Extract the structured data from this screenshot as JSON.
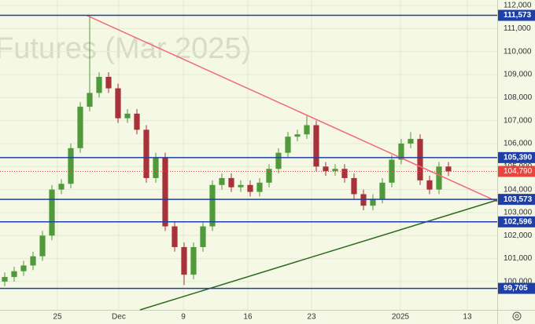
{
  "chart_data": {
    "type": "candlestick",
    "watermark": "Futures (Mar 2025)",
    "x": [
      0,
      1,
      2,
      3,
      4,
      5,
      6,
      7,
      8,
      9,
      10,
      11,
      12,
      13,
      14,
      15,
      16,
      17,
      18,
      19,
      20,
      21,
      22,
      23,
      24,
      25,
      26,
      27,
      28,
      29,
      30,
      31,
      32,
      33,
      34,
      35,
      36,
      37,
      38,
      39,
      40,
      41,
      42,
      43,
      44,
      45,
      46,
      47
    ],
    "open": [
      100000,
      100200,
      100450,
      100700,
      101100,
      102000,
      104000,
      104250,
      105800,
      107600,
      108200,
      108900,
      108400,
      107100,
      107300,
      106600,
      104500,
      105400,
      102400,
      101500,
      100300,
      101500,
      102400,
      104200,
      104500,
      104100,
      104200,
      103900,
      104300,
      104900,
      105600,
      106300,
      106400,
      106800,
      105000,
      104800,
      104900,
      104500,
      103800,
      103300,
      103600,
      104300,
      105300,
      106000,
      106200,
      104400,
      104000,
      105000
    ],
    "high": [
      100400,
      100650,
      100900,
      101300,
      102200,
      104200,
      104450,
      106000,
      107800,
      111573,
      109100,
      109100,
      108600,
      107500,
      107500,
      106800,
      105600,
      105600,
      102600,
      101700,
      101700,
      102600,
      104400,
      104700,
      104700,
      104400,
      104400,
      104500,
      105100,
      105800,
      106500,
      106600,
      107200,
      107000,
      105200,
      105100,
      105100,
      104700,
      104000,
      103800,
      104500,
      105500,
      106200,
      106500,
      106400,
      104600,
      105200,
      105200
    ],
    "low": [
      99800,
      100000,
      100250,
      100500,
      100900,
      101800,
      103800,
      104050,
      105600,
      107400,
      108000,
      108200,
      106900,
      106900,
      106400,
      104300,
      104300,
      102200,
      101300,
      99850,
      100100,
      101300,
      102200,
      104000,
      103900,
      103900,
      103700,
      103700,
      104100,
      104700,
      105400,
      106100,
      106200,
      104800,
      104600,
      104600,
      104300,
      103600,
      103100,
      103100,
      103400,
      104100,
      105100,
      105800,
      104200,
      103800,
      103800,
      104590
    ],
    "close": [
      100200,
      100450,
      100700,
      101100,
      102000,
      104000,
      104250,
      105800,
      107600,
      108200,
      108900,
      108400,
      107100,
      107300,
      106600,
      104500,
      105400,
      102400,
      101500,
      100300,
      101500,
      102400,
      104200,
      104500,
      104100,
      104200,
      103900,
      104300,
      104900,
      105600,
      106300,
      106400,
      106800,
      105000,
      104800,
      104900,
      104500,
      103800,
      103300,
      103600,
      104300,
      105300,
      106000,
      106200,
      104400,
      104000,
      105000,
      104790
    ],
    "up_color": "#4f9a3a",
    "down_color": "#a8323a",
    "xlim": [
      -0.5,
      52.17
    ],
    "xticks": [
      {
        "value": 5.58,
        "label": "25"
      },
      {
        "value": 12.08,
        "label": "Dec"
      },
      {
        "value": 18.92,
        "label": "9"
      },
      {
        "value": 25.75,
        "label": "16"
      },
      {
        "value": 32.5,
        "label": "23"
      },
      {
        "value": 41.92,
        "label": "2025"
      },
      {
        "value": 49,
        "label": "13"
      }
    ],
    "ylim": [
      98770,
      112240
    ],
    "yticks": [
      {
        "value": 100000,
        "label": "100,000"
      },
      {
        "value": 101000,
        "label": "101,000"
      },
      {
        "value": 102000,
        "label": "102,000"
      },
      {
        "value": 103000,
        "label": "103,000"
      },
      {
        "value": 104000,
        "label": "104,000"
      },
      {
        "value": 105000,
        "label": "105,000"
      },
      {
        "value": 106000,
        "label": "106,000"
      },
      {
        "value": 107000,
        "label": "107,000"
      },
      {
        "value": 108000,
        "label": "108,000"
      },
      {
        "value": 109000,
        "label": "109,000"
      },
      {
        "value": 110000,
        "label": "110,000"
      },
      {
        "value": 111000,
        "label": "111,000"
      },
      {
        "value": 112000,
        "label": "112,000"
      }
    ],
    "grid": true,
    "levels": [
      {
        "value": 111573,
        "label": "111,573"
      },
      {
        "value": 105390,
        "label": "105,390"
      },
      {
        "value": 103573,
        "label": "103,573"
      },
      {
        "value": 102596,
        "label": "102,596"
      },
      {
        "value": 99705,
        "label": "99,705"
      }
    ],
    "level_color": "#1f3fa8",
    "last_price": {
      "value": 104790,
      "label": "104,790"
    },
    "last_color": "#e8463c",
    "trendlines": [
      {
        "x": [
          8.67,
          52.17
        ],
        "y": [
          111573,
          103480
        ],
        "color": "#f06a78"
      },
      {
        "x": [
          14.33,
          52.17
        ],
        "y": [
          98770,
          103545
        ],
        "color": "#2e6b1e"
      }
    ]
  }
}
